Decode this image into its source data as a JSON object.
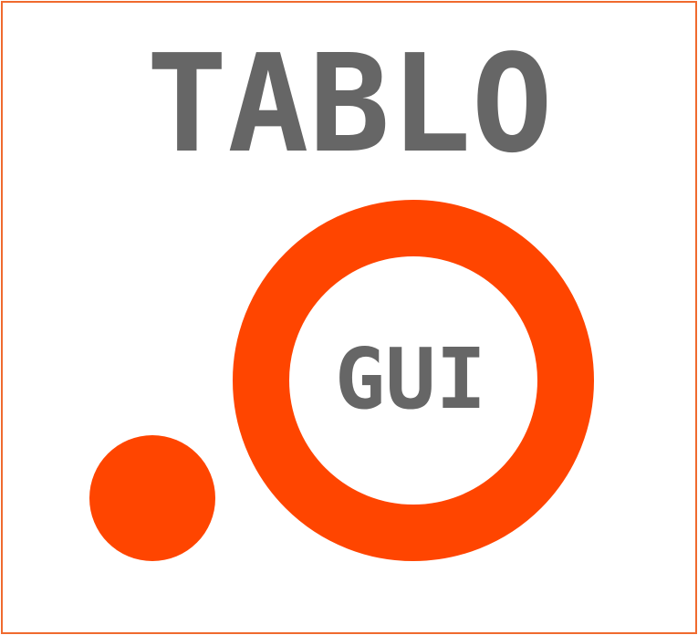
{
  "logo": {
    "title": "TABLO",
    "ring_label": "GUI",
    "colors": {
      "text": "#666666",
      "accent": "#ff4500",
      "border": "#f06a2e",
      "background": "#ffffff"
    }
  }
}
